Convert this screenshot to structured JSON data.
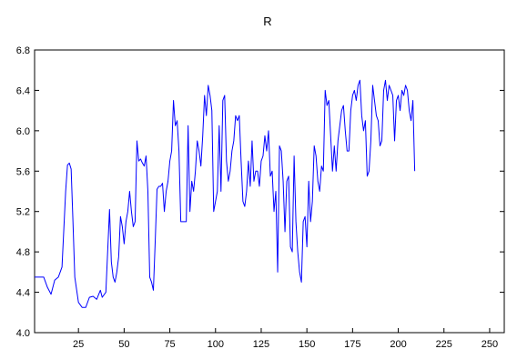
{
  "chart_data": {
    "type": "line",
    "title": "R",
    "xlabel": "",
    "ylabel": "",
    "xlim": [
      1,
      258
    ],
    "ylim": [
      4.0,
      6.8
    ],
    "grid": false,
    "x_ticks": [
      25,
      50,
      75,
      100,
      125,
      150,
      175,
      200,
      225,
      250
    ],
    "x_tick_labels": [
      "25",
      "50",
      "75",
      "100",
      "125",
      "150",
      "175",
      "200",
      "225",
      "250"
    ],
    "y_ticks": [
      4.0,
      4.4,
      4.8,
      5.2,
      5.6,
      6.0,
      6.4,
      6.8
    ],
    "y_tick_labels": [
      "4.0",
      "4.4",
      "4.8",
      "5.2",
      "5.6",
      "6.0",
      "6.4",
      "6.8"
    ],
    "series": [
      {
        "color": "#0000ff",
        "points": [
          [
            1,
            4.55
          ],
          [
            6,
            4.55
          ],
          [
            8,
            4.45
          ],
          [
            10,
            4.38
          ],
          [
            12,
            4.52
          ],
          [
            14,
            4.55
          ],
          [
            16,
            4.65
          ],
          [
            18,
            5.4
          ],
          [
            19,
            5.66
          ],
          [
            20,
            5.68
          ],
          [
            21,
            5.62
          ],
          [
            22,
            5.1
          ],
          [
            23,
            4.55
          ],
          [
            25,
            4.3
          ],
          [
            27,
            4.25
          ],
          [
            29,
            4.25
          ],
          [
            31,
            4.35
          ],
          [
            33,
            4.36
          ],
          [
            35,
            4.33
          ],
          [
            37,
            4.42
          ],
          [
            38,
            4.35
          ],
          [
            40,
            4.4
          ],
          [
            42,
            5.22
          ],
          [
            43,
            4.7
          ],
          [
            44,
            4.55
          ],
          [
            45,
            4.5
          ],
          [
            46,
            4.6
          ],
          [
            47,
            4.75
          ],
          [
            48,
            5.15
          ],
          [
            49,
            5.05
          ],
          [
            50,
            4.88
          ],
          [
            51,
            5.1
          ],
          [
            52,
            5.2
          ],
          [
            53,
            5.4
          ],
          [
            54,
            5.2
          ],
          [
            55,
            5.05
          ],
          [
            56,
            5.1
          ],
          [
            57,
            5.9
          ],
          [
            58,
            5.7
          ],
          [
            59,
            5.72
          ],
          [
            60,
            5.68
          ],
          [
            61,
            5.65
          ],
          [
            62,
            5.75
          ],
          [
            63,
            5.4
          ],
          [
            64,
            4.55
          ],
          [
            65,
            4.5
          ],
          [
            66,
            4.42
          ],
          [
            67,
            4.9
          ],
          [
            68,
            5.42
          ],
          [
            69,
            5.45
          ],
          [
            70,
            5.45
          ],
          [
            71,
            5.48
          ],
          [
            72,
            5.2
          ],
          [
            73,
            5.4
          ],
          [
            74,
            5.5
          ],
          [
            75,
            5.7
          ],
          [
            76,
            5.8
          ],
          [
            77,
            6.3
          ],
          [
            78,
            6.05
          ],
          [
            79,
            6.1
          ],
          [
            80,
            5.8
          ],
          [
            81,
            5.1
          ],
          [
            82,
            5.1
          ],
          [
            83,
            5.1
          ],
          [
            84,
            5.1
          ],
          [
            85,
            6.05
          ],
          [
            86,
            5.2
          ],
          [
            87,
            5.5
          ],
          [
            88,
            5.4
          ],
          [
            89,
            5.6
          ],
          [
            90,
            5.9
          ],
          [
            91,
            5.8
          ],
          [
            92,
            5.65
          ],
          [
            93,
            5.95
          ],
          [
            94,
            6.35
          ],
          [
            95,
            6.15
          ],
          [
            96,
            6.45
          ],
          [
            97,
            6.35
          ],
          [
            98,
            6.2
          ],
          [
            99,
            5.2
          ],
          [
            100,
            5.3
          ],
          [
            101,
            5.4
          ],
          [
            102,
            6.05
          ],
          [
            103,
            5.4
          ],
          [
            104,
            6.3
          ],
          [
            105,
            6.35
          ],
          [
            106,
            5.7
          ],
          [
            107,
            5.5
          ],
          [
            108,
            5.6
          ],
          [
            109,
            5.8
          ],
          [
            110,
            5.9
          ],
          [
            111,
            6.15
          ],
          [
            112,
            6.1
          ],
          [
            113,
            6.15
          ],
          [
            114,
            5.7
          ],
          [
            115,
            5.3
          ],
          [
            116,
            5.25
          ],
          [
            117,
            5.4
          ],
          [
            118,
            5.7
          ],
          [
            119,
            5.45
          ],
          [
            120,
            5.9
          ],
          [
            121,
            5.5
          ],
          [
            122,
            5.6
          ],
          [
            123,
            5.6
          ],
          [
            124,
            5.45
          ],
          [
            125,
            5.7
          ],
          [
            126,
            5.75
          ],
          [
            127,
            5.95
          ],
          [
            128,
            5.8
          ],
          [
            129,
            6.0
          ],
          [
            130,
            5.55
          ],
          [
            131,
            5.6
          ],
          [
            132,
            5.2
          ],
          [
            133,
            5.4
          ],
          [
            134,
            4.6
          ],
          [
            135,
            5.85
          ],
          [
            136,
            5.8
          ],
          [
            137,
            5.5
          ],
          [
            138,
            5.0
          ],
          [
            139,
            5.5
          ],
          [
            140,
            5.55
          ],
          [
            141,
            4.85
          ],
          [
            142,
            4.8
          ],
          [
            143,
            5.75
          ],
          [
            144,
            5.1
          ],
          [
            145,
            4.8
          ],
          [
            146,
            4.6
          ],
          [
            147,
            4.5
          ],
          [
            148,
            5.1
          ],
          [
            149,
            5.15
          ],
          [
            150,
            4.85
          ],
          [
            151,
            5.5
          ],
          [
            152,
            5.1
          ],
          [
            153,
            5.3
          ],
          [
            154,
            5.85
          ],
          [
            155,
            5.75
          ],
          [
            156,
            5.5
          ],
          [
            157,
            5.4
          ],
          [
            158,
            5.65
          ],
          [
            159,
            5.6
          ],
          [
            160,
            6.4
          ],
          [
            161,
            6.25
          ],
          [
            162,
            6.3
          ],
          [
            163,
            5.95
          ],
          [
            164,
            5.6
          ],
          [
            165,
            5.85
          ],
          [
            166,
            5.6
          ],
          [
            167,
            5.9
          ],
          [
            168,
            6.05
          ],
          [
            169,
            6.2
          ],
          [
            170,
            6.25
          ],
          [
            171,
            6.0
          ],
          [
            172,
            5.8
          ],
          [
            173,
            5.8
          ],
          [
            174,
            6.2
          ],
          [
            175,
            6.35
          ],
          [
            176,
            6.4
          ],
          [
            177,
            6.3
          ],
          [
            178,
            6.45
          ],
          [
            179,
            6.5
          ],
          [
            180,
            6.15
          ],
          [
            181,
            6.0
          ],
          [
            182,
            6.1
          ],
          [
            183,
            5.55
          ],
          [
            184,
            5.6
          ],
          [
            185,
            5.9
          ],
          [
            186,
            6.45
          ],
          [
            187,
            6.3
          ],
          [
            188,
            6.15
          ],
          [
            189,
            6.1
          ],
          [
            190,
            5.85
          ],
          [
            191,
            5.9
          ],
          [
            192,
            6.4
          ],
          [
            193,
            6.5
          ],
          [
            194,
            6.3
          ],
          [
            195,
            6.45
          ],
          [
            196,
            6.4
          ],
          [
            197,
            6.35
          ],
          [
            198,
            5.9
          ],
          [
            199,
            6.3
          ],
          [
            200,
            6.35
          ],
          [
            201,
            6.2
          ],
          [
            202,
            6.4
          ],
          [
            203,
            6.35
          ],
          [
            204,
            6.45
          ],
          [
            205,
            6.4
          ],
          [
            206,
            6.2
          ],
          [
            207,
            6.1
          ],
          [
            208,
            6.3
          ],
          [
            209,
            5.6
          ]
        ]
      }
    ]
  },
  "colors": {
    "line": "#0000ff",
    "axis": "#000000",
    "background": "#ffffff"
  }
}
